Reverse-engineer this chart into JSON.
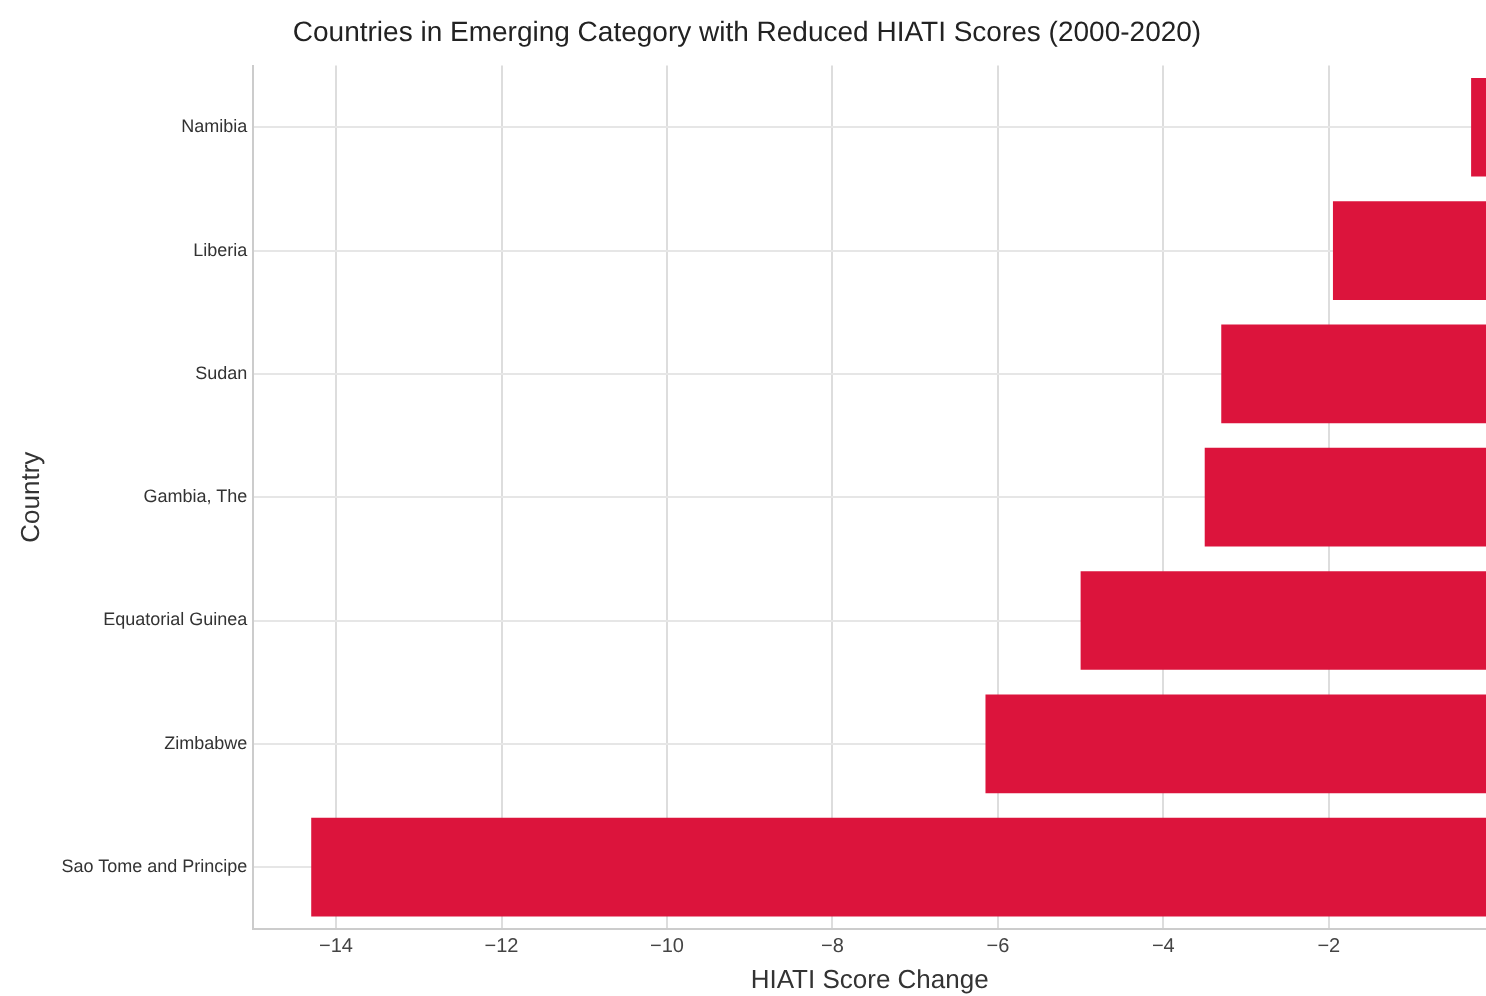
{
  "chart_data": {
    "type": "bar",
    "orientation": "horizontal",
    "title": "Countries in Emerging Category with Reduced HIATI Scores (2000-2020)",
    "xlabel": "HIATI Score Change",
    "ylabel": "Country",
    "categories": [
      "Namibia",
      "Liberia",
      "Sudan",
      "Gambia, The",
      "Equatorial Guinea",
      "Zimbabwe",
      "Sao Tome and Principe"
    ],
    "values": [
      -0.28,
      -1.95,
      -3.3,
      -3.5,
      -5.0,
      -6.15,
      -14.3
    ],
    "color": "#dc143c",
    "xlim": [
      -15,
      -0.1
    ],
    "xticks": [
      -14,
      -12,
      -10,
      -8,
      -6,
      -4,
      -2
    ],
    "grid": true
  }
}
